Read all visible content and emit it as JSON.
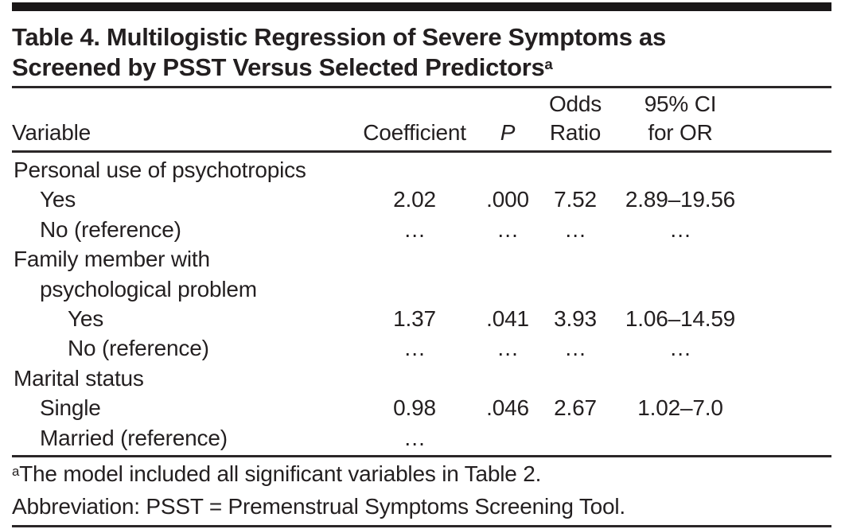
{
  "title": {
    "line1": "Table 4. Multilogistic Regression of Severe Symptoms as",
    "line2": "Screened by PSST Versus Selected Predictors",
    "superscript": "a"
  },
  "table": {
    "headers": {
      "variable": "Variable",
      "coefficient": "Coefficient",
      "p": "P",
      "odds_ratio_line1": "Odds",
      "odds_ratio_line2": "Ratio",
      "ci_line1": "95% CI",
      "ci_line2": "for OR"
    },
    "rows": [
      {
        "label": "Personal use of psychotropics",
        "indent": 0,
        "coefficient": "",
        "p": "",
        "odds_ratio": "",
        "ci": ""
      },
      {
        "label": "Yes",
        "indent": 1,
        "coefficient": "2.02",
        "p": ".000",
        "odds_ratio": "7.52",
        "ci": "2.89–19.56"
      },
      {
        "label": "No (reference)",
        "indent": 1,
        "coefficient": "…",
        "p": "…",
        "odds_ratio": "…",
        "ci": "…"
      },
      {
        "label": "Family member with",
        "indent": 0,
        "coefficient": "",
        "p": "",
        "odds_ratio": "",
        "ci": ""
      },
      {
        "label": "psychological problem",
        "indent": 1,
        "coefficient": "",
        "p": "",
        "odds_ratio": "",
        "ci": ""
      },
      {
        "label": "Yes",
        "indent": 2,
        "coefficient": "1.37",
        "p": ".041",
        "odds_ratio": "3.93",
        "ci": "1.06–14.59"
      },
      {
        "label": "No (reference)",
        "indent": 2,
        "coefficient": "…",
        "p": "…",
        "odds_ratio": "…",
        "ci": "…"
      },
      {
        "label": "Marital status",
        "indent": 0,
        "coefficient": "",
        "p": "",
        "odds_ratio": "",
        "ci": ""
      },
      {
        "label": "Single",
        "indent": 1,
        "coefficient": "0.98",
        "p": ".046",
        "odds_ratio": "2.67",
        "ci": "1.02–7.0"
      },
      {
        "label": "Married (reference)",
        "indent": 1,
        "coefficient": "…",
        "p": "",
        "odds_ratio": "",
        "ci": ""
      }
    ]
  },
  "footnotes": {
    "a_superscript": "a",
    "a_text": "The model included all significant variables in Table 2.",
    "abbreviation": "Abbreviation: PSST = Premenstrual Symptoms Screening Tool."
  },
  "colors": {
    "text": "#231f20",
    "rule": "#2b2728",
    "top_bar": "#1a1718",
    "background": "#ffffff"
  }
}
